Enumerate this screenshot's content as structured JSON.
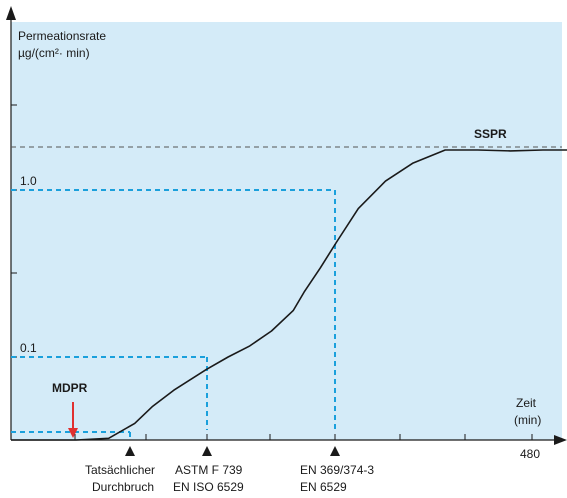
{
  "chart_data": {
    "type": "line",
    "ylabel_line1": "Permeationsrate",
    "ylabel_line2": "µg/(cm²· min)",
    "xlabel_line1": "Zeit",
    "xlabel_line2": "(min)",
    "y_tick_labels": [
      "0.1",
      "1.0"
    ],
    "x_tick_label": "480",
    "sspr_label": "SSPR",
    "mdpr_label": "MDPR",
    "markers": [
      {
        "line1": "Tatsächlicher",
        "line2": "Durchbruch"
      },
      {
        "line1": "ASTM F 739",
        "line2": "EN ISO 6529"
      },
      {
        "line1": "EN 369/374-3",
        "line2": "EN 6529"
      }
    ],
    "x": [
      0,
      60,
      90,
      114,
      130,
      150,
      180,
      200,
      220,
      240,
      260,
      270,
      285,
      300,
      320,
      345,
      370,
      400,
      430,
      460,
      490,
      520,
      562
    ],
    "y": [
      0,
      0,
      0.002,
      0.02,
      0.04,
      0.06,
      0.085,
      0.1,
      0.16,
      0.24,
      0.35,
      0.45,
      0.58,
      0.72,
      0.9,
      1.1,
      1.3,
      1.45,
      1.45,
      1.44,
      1.45,
      1.45,
      1.44
    ],
    "colors": {
      "background": "#d4ebf8",
      "curve": "#1a1a1a",
      "guides": "#1aa0dc",
      "sspr_line": "#555555",
      "mdpr_arrow": "#e03030"
    }
  }
}
